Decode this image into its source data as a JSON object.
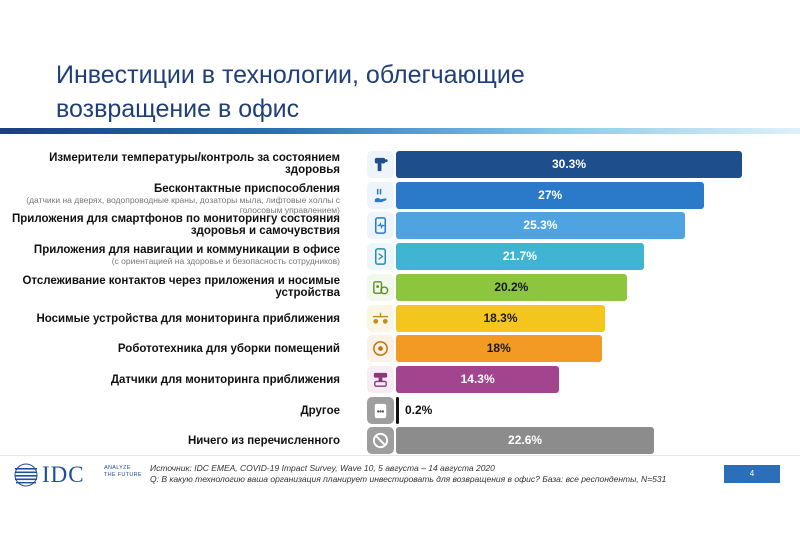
{
  "slide": {
    "title_line1": "Инвестиции в технологии, облегчающие",
    "title_line2": "возвращение в офис"
  },
  "chart_data": {
    "type": "bar",
    "orientation": "horizontal",
    "xlim": [
      0,
      30.3
    ],
    "categories": [
      {
        "label": "Измерители температуры/контроль за состоянием здоровья",
        "sublabel": "",
        "value": 30.3,
        "value_label": "30.3%",
        "color": "#1f4e8c",
        "icon_bg": "#eef4fb",
        "icon": "thermometer-icon"
      },
      {
        "label": "Бесконтактные приспособления",
        "sublabel": "(датчики на дверях, водопроводные краны, дозаторы мыла, лифтовые холлы с голосовым управлением)",
        "value": 27,
        "value_label": "27%",
        "color": "#2b7ac9",
        "icon_bg": "#eef4fb",
        "icon": "touchless-hand-icon"
      },
      {
        "label": "Приложения для смартфонов по мониторингу состояния здоровья и самочувствия",
        "sublabel": "",
        "value": 25.3,
        "value_label": "25.3%",
        "color": "#4ea3e0",
        "icon_bg": "#eef4fb",
        "icon": "smartphone-health-icon"
      },
      {
        "label": "Приложения для навигации и коммуникации в офисе",
        "sublabel": "(с ориентацией на здоровье и безопасность сотрудников)",
        "value": 21.7,
        "value_label": "21.7%",
        "color": "#3fb5d3",
        "icon_bg": "#edf7f9",
        "icon": "office-navigation-icon"
      },
      {
        "label": "Отслеживание контактов через приложения и носимые устройства",
        "sublabel": "",
        "value": 20.2,
        "value_label": "20.2%",
        "color": "#8cc63f",
        "icon_bg": "#f3f8ec",
        "icon": "contact-tracing-icon"
      },
      {
        "label": "Носимые устройства для мониторинга приближения",
        "sublabel": "",
        "value": 18.3,
        "value_label": "18.3%",
        "color": "#f4c51d",
        "icon_bg": "#fbf6e4",
        "icon": "wearable-distance-icon"
      },
      {
        "label": "Робототехника для уборки помещений",
        "sublabel": "",
        "value": 18,
        "value_label": "18%",
        "color": "#f39a25",
        "icon_bg": "#fbf1e6",
        "icon": "cleaning-robot-icon"
      },
      {
        "label": "Датчики для мониторинга приближения",
        "sublabel": "",
        "value": 14.3,
        "value_label": "14.3%",
        "color": "#a3448f",
        "icon_bg": "#f6ecf4",
        "icon": "proximity-sensor-icon"
      },
      {
        "label": "Другое",
        "sublabel": "",
        "value": 0.2,
        "value_label": "0.2%",
        "color": "#111111",
        "icon_bg": "#9e9e9e",
        "icon": "other-dots-icon"
      },
      {
        "label": "Ничего из перечисленного",
        "sublabel": "",
        "value": 22.6,
        "value_label": "22.6%",
        "color": "#8c8c8c",
        "icon_bg": "#9e9e9e",
        "icon": "none-icon"
      }
    ]
  },
  "footer": {
    "logo_text": "IDC",
    "logo_tagline": "ANALYZE THE FUTURE",
    "source_line1": "Источник: IDC EMEA, COVID-19 Impact Survey, Wave 10, 5 августа – 14 августа 2020",
    "source_line2": "Q: В какую технологию ваша организация планирует инвестировать для возвращения в офис?  База: все респонденты, N=531",
    "page_number": "4"
  }
}
